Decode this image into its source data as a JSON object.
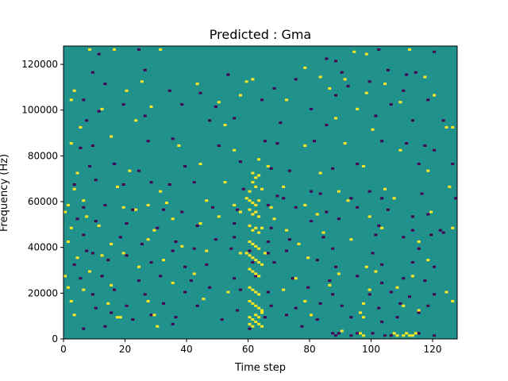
{
  "chart_data": {
    "type": "heatmap",
    "title": "Predicted : Gma",
    "xlabel": "Time step",
    "ylabel": "Frequency (Hz)",
    "xlim": [
      0,
      128
    ],
    "ylim": [
      0,
      128000
    ],
    "n_time_steps": 128,
    "n_freq_bins": 128,
    "freq_bin_hz": 1000,
    "x_ticks": [
      0,
      20,
      40,
      60,
      80,
      100,
      120
    ],
    "y_ticks": [
      0,
      20000,
      40000,
      60000,
      80000,
      100000,
      120000
    ],
    "x_tick_labels": [
      "0",
      "20",
      "40",
      "60",
      "80",
      "100",
      "120"
    ],
    "y_tick_labels": [
      "0",
      "20000",
      "40000",
      "60000",
      "80000",
      "100000",
      "120000"
    ],
    "colormap": {
      "background": "#21918c",
      "low": "#440154",
      "high": "#fde725"
    },
    "grid": false,
    "legend": "none",
    "marks_note": "Sparse binary-like activations; dense high-value band around time steps 60-64 spanning 5000-70000 Hz",
    "high_cells": [
      [
        8,
        126000
      ],
      [
        16,
        126000
      ],
      [
        31,
        126000
      ],
      [
        94,
        125000
      ],
      [
        98,
        124000
      ],
      [
        112,
        126000
      ],
      [
        25,
        112000
      ],
      [
        59,
        112000
      ],
      [
        78,
        118000
      ],
      [
        83,
        114000
      ],
      [
        91,
        113000
      ],
      [
        104,
        111000
      ],
      [
        117,
        114000
      ],
      [
        3,
        108000
      ],
      [
        20,
        108000
      ],
      [
        43,
        111000
      ],
      [
        61,
        113000
      ],
      [
        86,
        109000
      ],
      [
        98,
        107000
      ],
      [
        120,
        106000
      ],
      [
        2,
        104000
      ],
      [
        12,
        100000
      ],
      [
        28,
        101000
      ],
      [
        50,
        103000
      ],
      [
        57,
        106000
      ],
      [
        72,
        104000
      ],
      [
        95,
        100000
      ],
      [
        109,
        103000
      ],
      [
        5,
        92000
      ],
      [
        23,
        95000
      ],
      [
        52,
        93000
      ],
      [
        88,
        96000
      ],
      [
        100,
        91000
      ],
      [
        124,
        92000
      ],
      [
        126,
        92000
      ],
      [
        2,
        85000
      ],
      [
        15,
        88000
      ],
      [
        37,
        84000
      ],
      [
        55,
        82000
      ],
      [
        63,
        78000
      ],
      [
        66,
        75000
      ],
      [
        78,
        84000
      ],
      [
        91,
        85000
      ],
      [
        109,
        82000
      ],
      [
        4,
        72000
      ],
      [
        21,
        73000
      ],
      [
        44,
        76000
      ],
      [
        61,
        72000
      ],
      [
        62,
        70000
      ],
      [
        63,
        71000
      ],
      [
        83,
        72000
      ],
      [
        97,
        75000
      ],
      [
        118,
        73000
      ],
      [
        3,
        65000
      ],
      [
        17,
        66000
      ],
      [
        31,
        64000
      ],
      [
        52,
        68000
      ],
      [
        61,
        68000
      ],
      [
        62,
        66000
      ],
      [
        60,
        64000
      ],
      [
        64,
        65000
      ],
      [
        71,
        66000
      ],
      [
        89,
        64000
      ],
      [
        104,
        65000
      ],
      [
        125,
        66000
      ],
      [
        1,
        58000
      ],
      [
        6,
        60000
      ],
      [
        19,
        57000
      ],
      [
        27,
        58000
      ],
      [
        33,
        59000
      ],
      [
        46,
        60000
      ],
      [
        55,
        58000
      ],
      [
        59,
        61000
      ],
      [
        60,
        60000
      ],
      [
        61,
        59000
      ],
      [
        62,
        58000
      ],
      [
        63,
        60000
      ],
      [
        67,
        57000
      ],
      [
        78,
        58000
      ],
      [
        92,
        60000
      ],
      [
        107,
        61000
      ],
      [
        0,
        55000
      ],
      [
        7,
        53000
      ],
      [
        23,
        56000
      ],
      [
        35,
        52000
      ],
      [
        50,
        53000
      ],
      [
        57,
        55000
      ],
      [
        60,
        56000
      ],
      [
        61,
        54000
      ],
      [
        62,
        55000
      ],
      [
        63,
        53000
      ],
      [
        68,
        52000
      ],
      [
        82,
        54000
      ],
      [
        99,
        53000
      ],
      [
        119,
        55000
      ],
      [
        2,
        48000
      ],
      [
        11,
        49000
      ],
      [
        29,
        47000
      ],
      [
        44,
        50000
      ],
      [
        60,
        49000
      ],
      [
        61,
        47000
      ],
      [
        62,
        48000
      ],
      [
        63,
        46000
      ],
      [
        64,
        48000
      ],
      [
        72,
        47000
      ],
      [
        84,
        46000
      ],
      [
        103,
        48000
      ],
      [
        126,
        48000
      ],
      [
        1,
        42000
      ],
      [
        15,
        41000
      ],
      [
        27,
        43000
      ],
      [
        38,
        40000
      ],
      [
        60,
        42000
      ],
      [
        61,
        41000
      ],
      [
        62,
        40000
      ],
      [
        63,
        39000
      ],
      [
        59,
        37000
      ],
      [
        76,
        41000
      ],
      [
        93,
        43000
      ],
      [
        115,
        42000
      ],
      [
        4,
        35000
      ],
      [
        12,
        36000
      ],
      [
        19,
        37000
      ],
      [
        32,
        34000
      ],
      [
        46,
        38000
      ],
      [
        57,
        37000
      ],
      [
        60,
        36000
      ],
      [
        61,
        35000
      ],
      [
        62,
        34000
      ],
      [
        63,
        33000
      ],
      [
        64,
        32000
      ],
      [
        65,
        37000
      ],
      [
        79,
        35000
      ],
      [
        98,
        31000
      ],
      [
        118,
        34000
      ],
      [
        0,
        27000
      ],
      [
        8,
        29000
      ],
      [
        24,
        31000
      ],
      [
        42,
        28000
      ],
      [
        60,
        30000
      ],
      [
        61,
        29000
      ],
      [
        62,
        28000
      ],
      [
        63,
        27000
      ],
      [
        75,
        26000
      ],
      [
        89,
        28000
      ],
      [
        101,
        29000
      ],
      [
        113,
        27000
      ],
      [
        1,
        22000
      ],
      [
        6,
        21000
      ],
      [
        15,
        23000
      ],
      [
        35,
        24000
      ],
      [
        53,
        20000
      ],
      [
        60,
        22000
      ],
      [
        61,
        21000
      ],
      [
        62,
        20000
      ],
      [
        63,
        19000
      ],
      [
        71,
        21000
      ],
      [
        86,
        23000
      ],
      [
        99,
        21000
      ],
      [
        108,
        22000
      ],
      [
        124,
        20000
      ],
      [
        2,
        16000
      ],
      [
        14,
        15000
      ],
      [
        27,
        16000
      ],
      [
        45,
        17000
      ],
      [
        60,
        16000
      ],
      [
        61,
        15000
      ],
      [
        62,
        14000
      ],
      [
        63,
        13000
      ],
      [
        64,
        12000
      ],
      [
        78,
        16000
      ],
      [
        97,
        15000
      ],
      [
        110,
        14000
      ],
      [
        126,
        16000
      ],
      [
        3,
        10000
      ],
      [
        17,
        9000
      ],
      [
        18,
        9000
      ],
      [
        29,
        10000
      ],
      [
        60,
        9000
      ],
      [
        61,
        8000
      ],
      [
        62,
        10000
      ],
      [
        63,
        9000
      ],
      [
        64,
        11000
      ],
      [
        80,
        10000
      ],
      [
        96,
        11000
      ],
      [
        97,
        9000
      ],
      [
        115,
        12000
      ],
      [
        30,
        5000
      ],
      [
        60,
        6000
      ],
      [
        61,
        5000
      ],
      [
        62,
        7000
      ],
      [
        63,
        6000
      ],
      [
        64,
        5000
      ],
      [
        90,
        3000
      ],
      [
        96,
        2000
      ],
      [
        97,
        1000
      ],
      [
        107,
        2000
      ],
      [
        108,
        1000
      ],
      [
        110,
        1000
      ],
      [
        111,
        2000
      ],
      [
        112,
        1000
      ],
      [
        113,
        1000
      ],
      [
        114,
        2000
      ]
    ],
    "low_cells": [
      [
        11,
        124000
      ],
      [
        24,
        126000
      ],
      [
        85,
        122000
      ],
      [
        88,
        121000
      ],
      [
        102,
        126000
      ],
      [
        120,
        125000
      ],
      [
        9,
        116000
      ],
      [
        26,
        117000
      ],
      [
        53,
        115000
      ],
      [
        75,
        113000
      ],
      [
        90,
        116000
      ],
      [
        105,
        117000
      ],
      [
        111,
        115000
      ],
      [
        114,
        116000
      ],
      [
        13,
        111000
      ],
      [
        34,
        108000
      ],
      [
        44,
        107000
      ],
      [
        68,
        109000
      ],
      [
        92,
        110000
      ],
      [
        99,
        112000
      ],
      [
        110,
        108000
      ],
      [
        6,
        104000
      ],
      [
        11,
        99000
      ],
      [
        19,
        102000
      ],
      [
        38,
        102000
      ],
      [
        49,
        101000
      ],
      [
        64,
        104000
      ],
      [
        80,
        100000
      ],
      [
        88,
        106000
      ],
      [
        106,
        102000
      ],
      [
        118,
        104000
      ],
      [
        7,
        95000
      ],
      [
        26,
        97000
      ],
      [
        47,
        95000
      ],
      [
        55,
        96000
      ],
      [
        70,
        94000
      ],
      [
        85,
        93000
      ],
      [
        101,
        97000
      ],
      [
        113,
        95000
      ],
      [
        123,
        95000
      ],
      [
        5,
        83000
      ],
      [
        9,
        84000
      ],
      [
        27,
        86000
      ],
      [
        35,
        87000
      ],
      [
        50,
        84000
      ],
      [
        65,
        86000
      ],
      [
        69,
        85000
      ],
      [
        81,
        86000
      ],
      [
        103,
        86000
      ],
      [
        111,
        85000
      ],
      [
        117,
        84000
      ],
      [
        120,
        82000
      ],
      [
        8,
        75000
      ],
      [
        16,
        76000
      ],
      [
        24,
        73000
      ],
      [
        39,
        75000
      ],
      [
        57,
        77000
      ],
      [
        67,
        74000
      ],
      [
        73,
        73000
      ],
      [
        87,
        74000
      ],
      [
        95,
        76000
      ],
      [
        115,
        76000
      ],
      [
        126,
        76000
      ],
      [
        3,
        67000
      ],
      [
        10,
        69000
      ],
      [
        19,
        67000
      ],
      [
        28,
        68000
      ],
      [
        34,
        67000
      ],
      [
        42,
        68000
      ],
      [
        58,
        65000
      ],
      [
        69,
        62000
      ],
      [
        71,
        61000
      ],
      [
        80,
        64000
      ],
      [
        83,
        63000
      ],
      [
        93,
        61000
      ],
      [
        99,
        64000
      ],
      [
        103,
        61000
      ],
      [
        116,
        63000
      ],
      [
        127,
        61000
      ],
      [
        6,
        57000
      ],
      [
        13,
        58000
      ],
      [
        22,
        56000
      ],
      [
        32,
        56000
      ],
      [
        38,
        55000
      ],
      [
        48,
        57000
      ],
      [
        56,
        56000
      ],
      [
        66,
        58000
      ],
      [
        75,
        57000
      ],
      [
        85,
        55000
      ],
      [
        95,
        57000
      ],
      [
        105,
        56000
      ],
      [
        113,
        53000
      ],
      [
        118,
        54000
      ],
      [
        4,
        52000
      ],
      [
        10,
        51000
      ],
      [
        20,
        50000
      ],
      [
        30,
        48000
      ],
      [
        43,
        49000
      ],
      [
        55,
        50000
      ],
      [
        67,
        48000
      ],
      [
        80,
        51000
      ],
      [
        89,
        52000
      ],
      [
        102,
        49000
      ],
      [
        113,
        47000
      ],
      [
        122,
        47000
      ],
      [
        6,
        45000
      ],
      [
        18,
        44000
      ],
      [
        25,
        41000
      ],
      [
        36,
        42000
      ],
      [
        49,
        43000
      ],
      [
        55,
        44000
      ],
      [
        66,
        42000
      ],
      [
        73,
        43000
      ],
      [
        84,
        44000
      ],
      [
        101,
        45000
      ],
      [
        110,
        44000
      ],
      [
        119,
        45000
      ],
      [
        123,
        46000
      ],
      [
        7,
        38000
      ],
      [
        9,
        37000
      ],
      [
        20,
        36000
      ],
      [
        35,
        38000
      ],
      [
        42,
        39000
      ],
      [
        54,
        39000
      ],
      [
        60,
        38000
      ],
      [
        66,
        37000
      ],
      [
        72,
        38000
      ],
      [
        87,
        39000
      ],
      [
        100,
        37000
      ],
      [
        115,
        39000
      ],
      [
        3,
        32000
      ],
      [
        14,
        34000
      ],
      [
        28,
        33000
      ],
      [
        39,
        31000
      ],
      [
        46,
        32000
      ],
      [
        61,
        33000
      ],
      [
        68,
        33000
      ],
      [
        82,
        34000
      ],
      [
        88,
        31000
      ],
      [
        103,
        32000
      ],
      [
        113,
        33000
      ],
      [
        120,
        31000
      ],
      [
        5,
        26000
      ],
      [
        12,
        27000
      ],
      [
        24,
        25000
      ],
      [
        31,
        27000
      ],
      [
        41,
        25000
      ],
      [
        55,
        26000
      ],
      [
        62,
        27000
      ],
      [
        74,
        26000
      ],
      [
        86,
        25000
      ],
      [
        95,
        27000
      ],
      [
        103,
        24000
      ],
      [
        110,
        26000
      ],
      [
        117,
        25000
      ],
      [
        9,
        19000
      ],
      [
        16,
        21000
      ],
      [
        26,
        19000
      ],
      [
        39,
        20000
      ],
      [
        47,
        22000
      ],
      [
        57,
        21000
      ],
      [
        66,
        20000
      ],
      [
        79,
        22000
      ],
      [
        87,
        19000
      ],
      [
        99,
        19000
      ],
      [
        106,
        20000
      ],
      [
        112,
        18000
      ],
      [
        120,
        19000
      ],
      [
        10,
        13000
      ],
      [
        20,
        14000
      ],
      [
        32,
        15000
      ],
      [
        43,
        14000
      ],
      [
        56,
        12000
      ],
      [
        67,
        14000
      ],
      [
        75,
        13000
      ],
      [
        83,
        15000
      ],
      [
        90,
        14000
      ],
      [
        102,
        13000
      ],
      [
        109,
        15000
      ],
      [
        118,
        14000
      ],
      [
        15,
        11000
      ],
      [
        22,
        8000
      ],
      [
        28,
        10000
      ],
      [
        36,
        9000
      ],
      [
        51,
        8000
      ],
      [
        65,
        9000
      ],
      [
        72,
        10000
      ],
      [
        82,
        8000
      ],
      [
        93,
        9000
      ],
      [
        103,
        7000
      ],
      [
        108,
        9000
      ],
      [
        115,
        11000
      ],
      [
        6,
        4000
      ],
      [
        13,
        5000
      ],
      [
        35,
        6000
      ],
      [
        60,
        4000
      ],
      [
        77,
        5000
      ],
      [
        87,
        2000
      ],
      [
        88,
        1000
      ],
      [
        89,
        2000
      ],
      [
        93,
        1000
      ],
      [
        95,
        2000
      ],
      [
        100,
        2000
      ],
      [
        104,
        1000
      ],
      [
        106,
        1000
      ],
      [
        115,
        2000
      ],
      [
        120,
        1000
      ]
    ]
  }
}
